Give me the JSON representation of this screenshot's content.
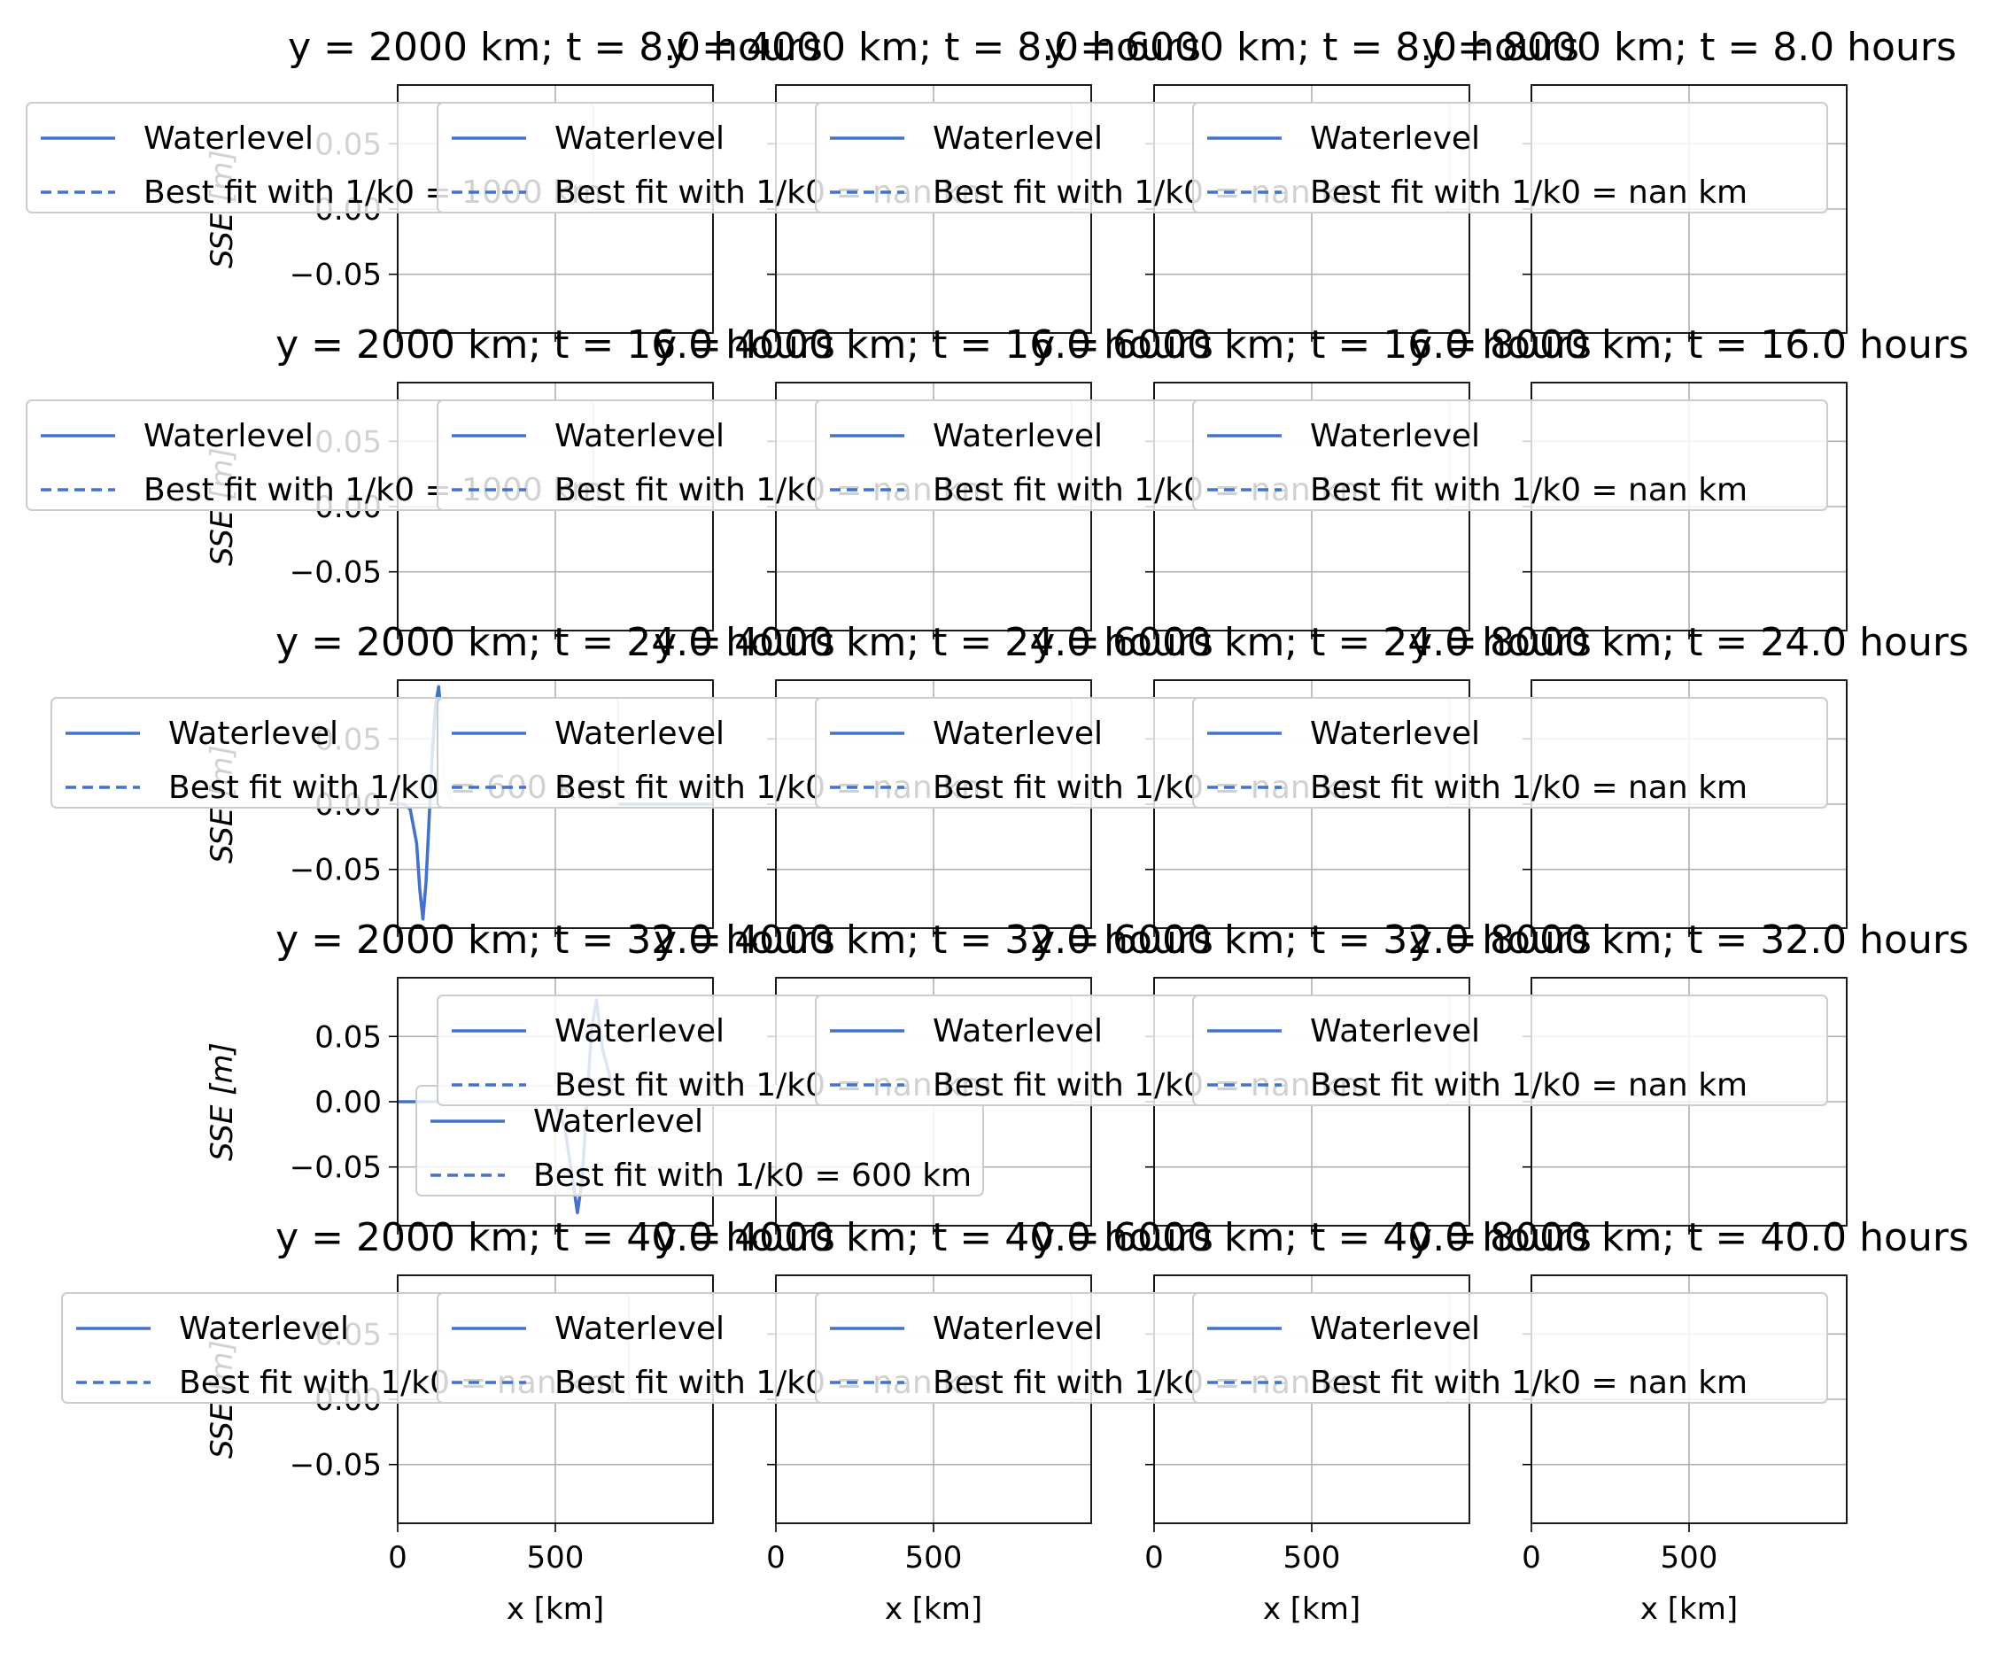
{
  "figure": {
    "ylabel": "SSE [m]",
    "xlabel": "x [km]",
    "legend_labels": [
      "Waterlevel",
      "Best fit with 1/k0 = nan km"
    ],
    "legend_labels_first_col": [
      [
        "Waterlevel",
        "Best fit with 1/k0 = 1000 km"
      ],
      [
        "Waterlevel",
        "Best fit with 1/k0 = 1000 km"
      ],
      [
        "Waterlevel",
        "Best fit with 1/k0 = 600 km"
      ],
      [
        "Waterlevel",
        "Best fit with 1/k0 = 600 km"
      ],
      [
        "Waterlevel",
        "Best fit with 1/k0 = nan km"
      ]
    ]
  },
  "colors": {
    "series": "#4472c8",
    "grid": "#b0b0b0",
    "axes": "#000000"
  },
  "chart_data": {
    "type": "line",
    "layout": "grid 5 rows x 4 columns",
    "rows_t_hours": [
      8.0,
      16.0,
      24.0,
      32.0,
      40.0
    ],
    "cols_y_km": [
      2000,
      4000,
      6000,
      8000
    ],
    "title_template": "y = {y} km; t = {t} hours",
    "xlim": [
      0,
      1000
    ],
    "ylim": [
      -0.095,
      0.095
    ],
    "xticks": [
      0,
      500
    ],
    "yticks": [
      -0.05,
      0.0,
      0.05
    ],
    "ytick_labels": [
      "−0.05",
      "0.00",
      "0.05"
    ],
    "xtick_labels": [
      "0",
      "500"
    ],
    "grid": true,
    "legend_placement": "upper left",
    "series": [
      {
        "name": "Waterlevel",
        "style": "solid"
      },
      {
        "name": "Best fit with 1/k0",
        "style": "dashed"
      }
    ],
    "panels": [
      {
        "row": 2,
        "col": 0,
        "waterlevel": {
          "x": [
            0,
            20,
            40,
            60,
            70,
            80,
            90,
            100,
            110,
            120,
            130,
            140,
            150,
            180,
            250,
            600,
            1000
          ],
          "y": [
            0.0,
            0.0,
            -0.004,
            -0.03,
            -0.065,
            -0.088,
            -0.06,
            -0.01,
            0.04,
            0.076,
            0.09,
            0.06,
            0.01,
            0.0,
            0.0,
            0.0,
            0.0
          ]
        }
      },
      {
        "row": 3,
        "col": 0,
        "waterlevel": {
          "x": [
            0,
            300,
            460,
            500,
            530,
            555,
            570,
            585,
            600,
            615,
            630,
            650,
            690,
            800,
            1000
          ],
          "y": [
            0.0,
            0.0,
            0.0,
            -0.002,
            -0.02,
            -0.06,
            -0.085,
            -0.06,
            0.0,
            0.055,
            0.078,
            0.04,
            0.004,
            0.0,
            0.0
          ]
        }
      }
    ]
  }
}
